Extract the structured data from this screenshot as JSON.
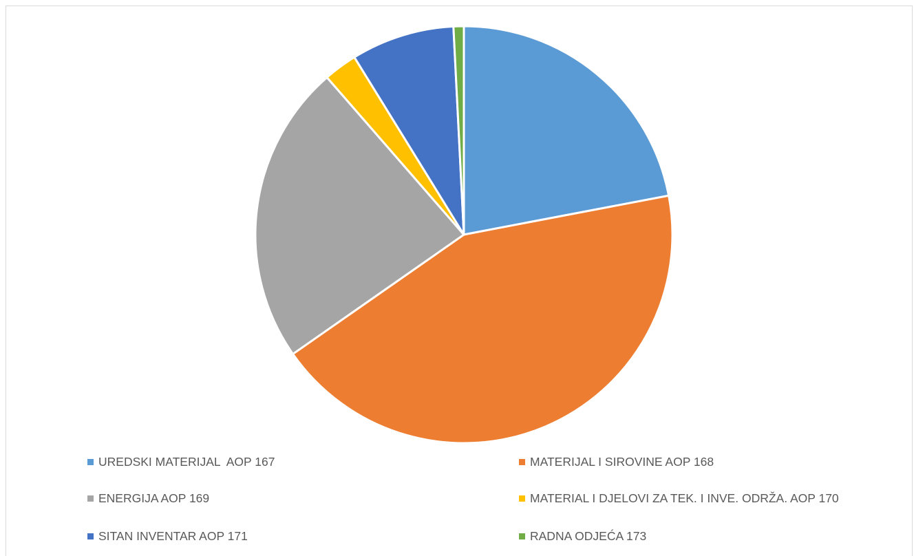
{
  "chart_data": {
    "type": "pie",
    "title": "",
    "categories": [
      "UREDSKI MATERIJAL  AOP 167",
      "MATERIJAL I SIROVINE AOP 168",
      "ENERGIJA AOP 169",
      "MATERIAL I DJELOVI ZA TEK. I INVE. ODRŽA. AOP 170",
      "SITAN INVENTAR AOP 171",
      "RADNA ODJEĆA 173"
    ],
    "values": [
      22.0,
      43.3,
      23.3,
      2.6,
      8.0,
      0.8
    ],
    "colors": [
      "#5b9bd5",
      "#ed7d31",
      "#a5a5a5",
      "#ffc000",
      "#4472c4",
      "#70ad47"
    ],
    "legend_position": "bottom",
    "start_angle": "12 o'clock, clockwise"
  }
}
